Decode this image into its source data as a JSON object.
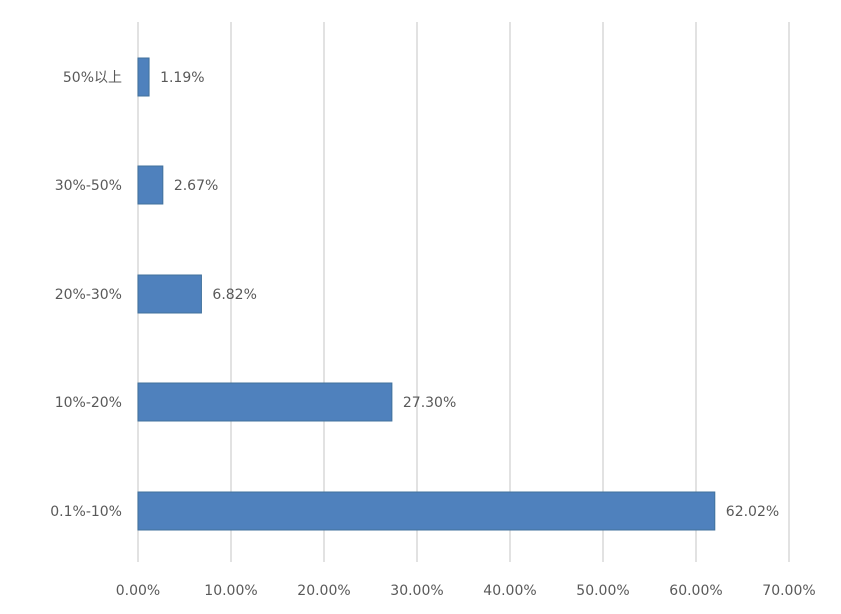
{
  "chart_data": {
    "type": "bar",
    "orientation": "horizontal",
    "categories": [
      "50%以上",
      "30%-50%",
      "20%-30%",
      "10%-20%",
      "0.1%-10%"
    ],
    "values": [
      1.19,
      2.67,
      6.82,
      27.3,
      62.02
    ],
    "data_labels": [
      "1.19%",
      "2.67%",
      "6.82%",
      "27.30%",
      "62.02%"
    ],
    "x_ticks": [
      "0.00%",
      "10.00%",
      "20.00%",
      "30.00%",
      "40.00%",
      "50.00%",
      "60.00%",
      "70.00%"
    ],
    "xlim": [
      0,
      70
    ],
    "unit": "%",
    "grid": "vertical",
    "legend": "none",
    "bar_color": "#4F81BD",
    "grid_color": "#D9D9D9"
  }
}
